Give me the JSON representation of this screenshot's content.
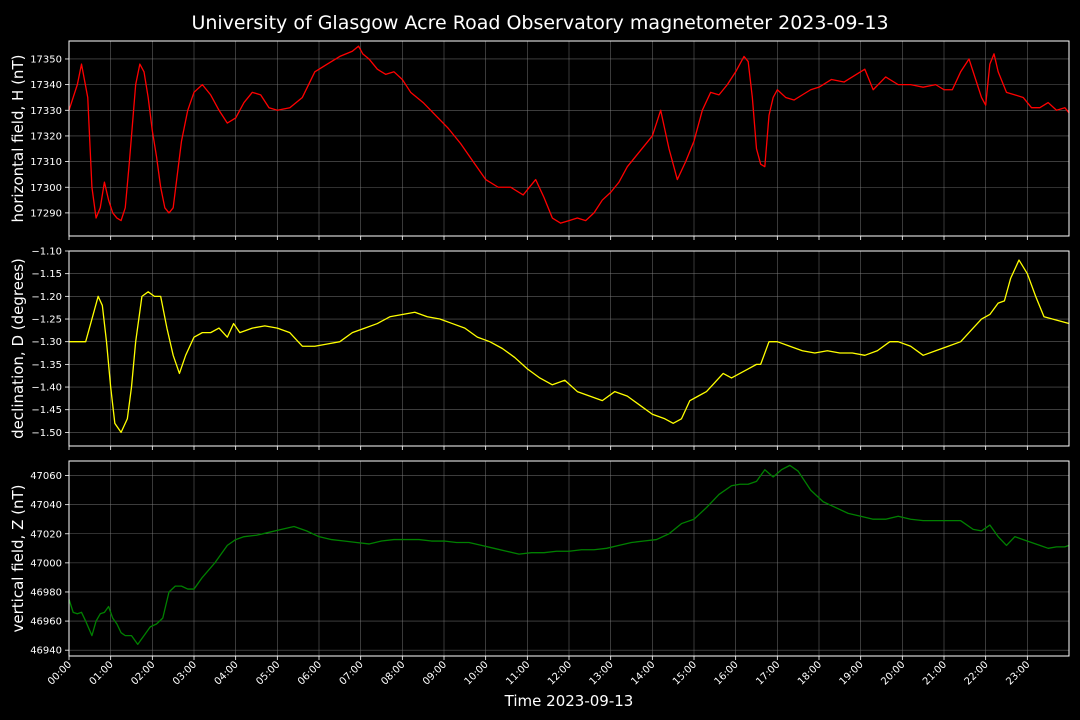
{
  "figure": {
    "title": "University of Glasgow Acre Road Observatory magnetometer 2023-09-13",
    "xlabel": "Time 2023-09-13",
    "background": "#000000",
    "foreground": "#ffffff",
    "grid_color": "#808080"
  },
  "chart_data": [
    {
      "type": "line",
      "panel": "top",
      "title": "",
      "xlabel": "",
      "ylabel": "horizontal field, H (nT)",
      "xlim": [
        0,
        24
      ],
      "ylim": [
        17281,
        17357
      ],
      "yticks": [
        17290,
        17300,
        17310,
        17320,
        17330,
        17340,
        17350
      ],
      "ytick_decimals": 0,
      "grid": true,
      "series": [
        {
          "color": "#ff0000",
          "x": [
            0.0,
            0.1,
            0.2,
            0.3,
            0.45,
            0.55,
            0.65,
            0.75,
            0.85,
            0.95,
            1.05,
            1.15,
            1.25,
            1.35,
            1.45,
            1.6,
            1.7,
            1.8,
            1.9,
            2.0,
            2.1,
            2.2,
            2.3,
            2.4,
            2.5,
            2.6,
            2.7,
            2.85,
            3.0,
            3.2,
            3.4,
            3.6,
            3.8,
            4.0,
            4.2,
            4.4,
            4.6,
            4.8,
            5.0,
            5.3,
            5.6,
            5.9,
            6.2,
            6.5,
            6.8,
            6.95,
            7.05,
            7.2,
            7.4,
            7.6,
            7.8,
            8.0,
            8.2,
            8.5,
            8.8,
            9.1,
            9.4,
            9.7,
            10.0,
            10.3,
            10.6,
            10.9,
            11.2,
            11.4,
            11.6,
            11.8,
            12.0,
            12.2,
            12.4,
            12.6,
            12.8,
            13.0,
            13.2,
            13.4,
            13.6,
            13.8,
            14.0,
            14.2,
            14.4,
            14.6,
            14.8,
            15.0,
            15.2,
            15.4,
            15.6,
            15.8,
            16.0,
            16.2,
            16.3,
            16.4,
            16.5,
            16.6,
            16.7,
            16.8,
            16.9,
            17.0,
            17.2,
            17.4,
            17.6,
            17.8,
            18.0,
            18.3,
            18.6,
            18.9,
            19.1,
            19.3,
            19.6,
            19.9,
            20.2,
            20.5,
            20.8,
            21.0,
            21.2,
            21.4,
            21.6,
            21.8,
            21.9,
            22.0,
            22.1,
            22.2,
            22.3,
            22.5,
            22.7,
            22.9,
            23.1,
            23.3,
            23.5,
            23.7,
            23.9,
            24.0
          ],
          "values": [
            17330,
            17335,
            17340,
            17348,
            17335,
            17300,
            17288,
            17292,
            17302,
            17295,
            17290,
            17288,
            17287,
            17292,
            17310,
            17340,
            17348,
            17345,
            17335,
            17322,
            17312,
            17300,
            17292,
            17290,
            17292,
            17305,
            17318,
            17330,
            17337,
            17340,
            17336,
            17330,
            17325,
            17327,
            17333,
            17337,
            17336,
            17331,
            17330,
            17331,
            17335,
            17345,
            17348,
            17351,
            17353,
            17355,
            17352,
            17350,
            17346,
            17344,
            17345,
            17342,
            17337,
            17333,
            17328,
            17323,
            17317,
            17310,
            17303,
            17300,
            17300,
            17297,
            17303,
            17296,
            17288,
            17286,
            17287,
            17288,
            17287,
            17290,
            17295,
            17298,
            17302,
            17308,
            17312,
            17316,
            17320,
            17330,
            17315,
            17303,
            17310,
            17318,
            17330,
            17337,
            17336,
            17340,
            17345,
            17351,
            17349,
            17335,
            17315,
            17309,
            17308,
            17328,
            17335,
            17338,
            17335,
            17334,
            17336,
            17338,
            17339,
            17342,
            17341,
            17344,
            17346,
            17338,
            17343,
            17340,
            17340,
            17339,
            17340,
            17338,
            17338,
            17345,
            17350,
            17340,
            17335,
            17332,
            17348,
            17352,
            17345,
            17337,
            17336,
            17335,
            17331,
            17331,
            17333,
            17330,
            17331,
            17329
          ]
        }
      ]
    },
    {
      "type": "line",
      "panel": "middle",
      "title": "",
      "xlabel": "",
      "ylabel": "declination, D (degrees)",
      "xlim": [
        0,
        24
      ],
      "ylim": [
        -1.53,
        -1.1
      ],
      "yticks": [
        -1.5,
        -1.45,
        -1.4,
        -1.35,
        -1.3,
        -1.25,
        -1.2,
        -1.15,
        -1.1
      ],
      "ytick_decimals": 2,
      "grid": true,
      "series": [
        {
          "color": "#ffff00",
          "x": [
            0.0,
            0.2,
            0.4,
            0.55,
            0.7,
            0.8,
            0.9,
            1.0,
            1.1,
            1.25,
            1.4,
            1.5,
            1.6,
            1.75,
            1.9,
            2.05,
            2.2,
            2.35,
            2.5,
            2.65,
            2.8,
            3.0,
            3.2,
            3.4,
            3.6,
            3.8,
            3.95,
            4.1,
            4.4,
            4.7,
            5.0,
            5.3,
            5.6,
            5.9,
            6.2,
            6.5,
            6.8,
            7.1,
            7.4,
            7.7,
            8.0,
            8.3,
            8.6,
            8.9,
            9.2,
            9.5,
            9.8,
            10.1,
            10.4,
            10.7,
            11.0,
            11.3,
            11.6,
            11.9,
            12.2,
            12.5,
            12.8,
            13.1,
            13.4,
            13.7,
            14.0,
            14.3,
            14.5,
            14.7,
            14.9,
            15.1,
            15.3,
            15.5,
            15.7,
            15.9,
            16.1,
            16.3,
            16.5,
            16.6,
            16.8,
            17.0,
            17.3,
            17.6,
            17.9,
            18.2,
            18.5,
            18.8,
            19.1,
            19.4,
            19.7,
            19.9,
            20.2,
            20.5,
            20.8,
            21.1,
            21.4,
            21.7,
            21.9,
            22.1,
            22.3,
            22.45,
            22.6,
            22.8,
            23.0,
            23.2,
            23.4,
            23.6,
            23.8,
            24.0
          ],
          "values": [
            -1.3,
            -1.3,
            -1.3,
            -1.25,
            -1.2,
            -1.22,
            -1.3,
            -1.4,
            -1.48,
            -1.5,
            -1.47,
            -1.4,
            -1.3,
            -1.2,
            -1.19,
            -1.2,
            -1.2,
            -1.27,
            -1.33,
            -1.37,
            -1.33,
            -1.29,
            -1.28,
            -1.28,
            -1.27,
            -1.29,
            -1.26,
            -1.28,
            -1.27,
            -1.265,
            -1.27,
            -1.28,
            -1.31,
            -1.31,
            -1.305,
            -1.3,
            -1.28,
            -1.27,
            -1.26,
            -1.245,
            -1.24,
            -1.235,
            -1.245,
            -1.25,
            -1.26,
            -1.27,
            -1.29,
            -1.3,
            -1.315,
            -1.335,
            -1.36,
            -1.38,
            -1.395,
            -1.385,
            -1.41,
            -1.42,
            -1.43,
            -1.41,
            -1.42,
            -1.44,
            -1.46,
            -1.47,
            -1.48,
            -1.47,
            -1.43,
            -1.42,
            -1.41,
            -1.39,
            -1.37,
            -1.38,
            -1.37,
            -1.36,
            -1.35,
            -1.35,
            -1.3,
            -1.3,
            -1.31,
            -1.32,
            -1.325,
            -1.32,
            -1.325,
            -1.325,
            -1.33,
            -1.32,
            -1.3,
            -1.3,
            -1.31,
            -1.33,
            -1.32,
            -1.31,
            -1.3,
            -1.27,
            -1.25,
            -1.24,
            -1.215,
            -1.21,
            -1.16,
            -1.12,
            -1.15,
            -1.2,
            -1.245,
            -1.25,
            -1.255,
            -1.26
          ]
        }
      ]
    },
    {
      "type": "line",
      "panel": "bottom",
      "title": "",
      "xlabel": "Time 2023-09-13",
      "ylabel": "vertical field, Z (nT)",
      "xlim": [
        0,
        24
      ],
      "ylim": [
        46936,
        47070
      ],
      "yticks": [
        46940,
        46960,
        46980,
        47000,
        47020,
        47040,
        47060
      ],
      "ytick_decimals": 0,
      "grid": true,
      "xticks": [
        0,
        1,
        2,
        3,
        4,
        5,
        6,
        7,
        8,
        9,
        10,
        11,
        12,
        13,
        14,
        15,
        16,
        17,
        18,
        19,
        20,
        21,
        22,
        23
      ],
      "xtick_labels": [
        "00:00",
        "01:00",
        "02:00",
        "03:00",
        "04:00",
        "05:00",
        "06:00",
        "07:00",
        "08:00",
        "09:00",
        "10:00",
        "11:00",
        "12:00",
        "13:00",
        "14:00",
        "15:00",
        "16:00",
        "17:00",
        "18:00",
        "19:00",
        "20:00",
        "21:00",
        "22:00",
        "23:00"
      ],
      "series": [
        {
          "color": "#008000",
          "x": [
            0.0,
            0.1,
            0.2,
            0.3,
            0.4,
            0.55,
            0.65,
            0.75,
            0.85,
            0.95,
            1.05,
            1.15,
            1.25,
            1.35,
            1.5,
            1.65,
            1.8,
            1.95,
            2.1,
            2.25,
            2.4,
            2.55,
            2.7,
            2.85,
            3.0,
            3.2,
            3.5,
            3.8,
            4.0,
            4.2,
            4.5,
            4.8,
            5.1,
            5.4,
            5.7,
            6.0,
            6.3,
            6.6,
            6.9,
            7.2,
            7.5,
            7.8,
            8.1,
            8.4,
            8.7,
            9.0,
            9.3,
            9.6,
            9.9,
            10.2,
            10.5,
            10.8,
            11.1,
            11.4,
            11.7,
            12.0,
            12.3,
            12.6,
            12.9,
            13.2,
            13.5,
            13.8,
            14.1,
            14.4,
            14.7,
            15.0,
            15.3,
            15.6,
            15.9,
            16.1,
            16.3,
            16.5,
            16.7,
            16.9,
            17.1,
            17.3,
            17.5,
            17.8,
            18.1,
            18.4,
            18.7,
            19.0,
            19.3,
            19.6,
            19.9,
            20.2,
            20.5,
            20.8,
            21.1,
            21.4,
            21.7,
            21.9,
            22.1,
            22.3,
            22.5,
            22.7,
            22.9,
            23.1,
            23.3,
            23.5,
            23.7,
            23.9,
            24.0
          ],
          "values": [
            46975,
            46966,
            46965,
            46966,
            46960,
            46950,
            46960,
            46965,
            46966,
            46970,
            46962,
            46958,
            46952,
            46950,
            46950,
            46944,
            46950,
            46956,
            46958,
            46962,
            46980,
            46984,
            46984,
            46982,
            46982,
            46990,
            47000,
            47012,
            47016,
            47018,
            47019,
            47021,
            47023,
            47025,
            47022,
            47018,
            47016,
            47015,
            47014,
            47013,
            47015,
            47016,
            47016,
            47016,
            47015,
            47015,
            47014,
            47014,
            47012,
            47010,
            47008,
            47006,
            47007,
            47007,
            47008,
            47008,
            47009,
            47009,
            47010,
            47012,
            47014,
            47015,
            47016,
            47020,
            47027,
            47030,
            47038,
            47047,
            47053,
            47054,
            47054,
            47056,
            47064,
            47059,
            47064,
            47067,
            47063,
            47050,
            47042,
            47038,
            47034,
            47032,
            47030,
            47030,
            47032,
            47030,
            47029,
            47029,
            47029,
            47029,
            47023,
            47022,
            47026,
            47018,
            47012,
            47018,
            47016,
            47014,
            47012,
            47010,
            47011,
            47011,
            47012
          ]
        }
      ]
    }
  ]
}
